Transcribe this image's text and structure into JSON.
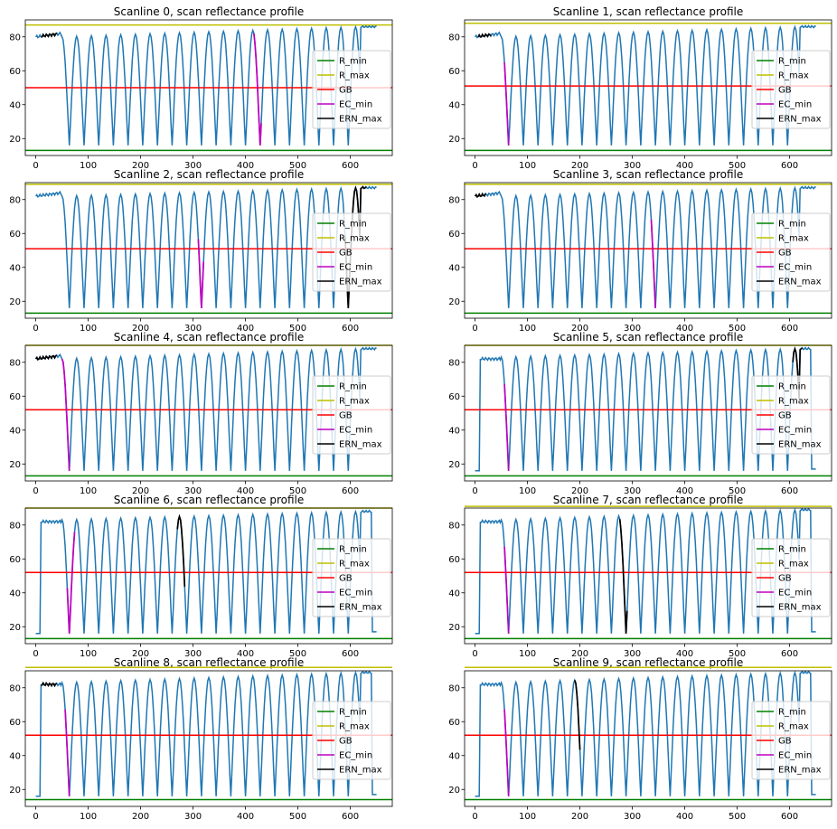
{
  "figure": {
    "layout": "5x2 grid of line charts"
  },
  "chart_data": [
    {
      "type": "line",
      "title": "Scanline 0, scan reflectance profile",
      "xlim": [
        -20,
        680
      ],
      "ylim": [
        10,
        90
      ],
      "xticks": [
        0,
        100,
        200,
        300,
        400,
        500,
        600
      ],
      "yticks": [
        20,
        40,
        60,
        80
      ],
      "series": [
        {
          "name": "R_min",
          "color": "#008000",
          "y": 13
        },
        {
          "name": "R_max",
          "color": "#bfbf00",
          "y": 87
        },
        {
          "name": "GB",
          "color": "#ff0000",
          "y": 50
        },
        {
          "name": "EC_min",
          "color": "#bf00bf",
          "x": [
            415,
            430
          ]
        },
        {
          "name": "ERN_max",
          "color": "#000000",
          "x": [
            10,
            40
          ]
        }
      ],
      "legend": "right",
      "start": 80,
      "start_x": 50,
      "end": 86,
      "end_x": 600,
      "edge": "high"
    },
    {
      "type": "line",
      "title": "Scanline 1, scan reflectance profile",
      "xlim": [
        -20,
        680
      ],
      "ylim": [
        10,
        90
      ],
      "xticks": [
        0,
        100,
        200,
        300,
        400,
        500,
        600
      ],
      "yticks": [
        20,
        40,
        60,
        80
      ],
      "series": [
        {
          "name": "R_min",
          "color": "#008000",
          "y": 13
        },
        {
          "name": "R_max",
          "color": "#bfbf00",
          "y": 88
        },
        {
          "name": "GB",
          "color": "#ff0000",
          "y": 51
        },
        {
          "name": "EC_min",
          "color": "#bf00bf",
          "x": [
            55,
            65
          ]
        },
        {
          "name": "ERN_max",
          "color": "#000000",
          "x": [
            5,
            30
          ]
        }
      ],
      "legend": "right",
      "start": 80,
      "start_x": 50,
      "end": 86,
      "end_x": 600,
      "edge": "high"
    },
    {
      "type": "line",
      "title": "Scanline 2, scan reflectance profile",
      "xlim": [
        -20,
        680
      ],
      "ylim": [
        10,
        90
      ],
      "xticks": [
        0,
        100,
        200,
        300,
        400,
        500,
        600
      ],
      "yticks": [
        20,
        40,
        60,
        80
      ],
      "series": [
        {
          "name": "R_min",
          "color": "#008000",
          "y": 13
        },
        {
          "name": "R_max",
          "color": "#bfbf00",
          "y": 89
        },
        {
          "name": "GB",
          "color": "#ff0000",
          "y": 51
        },
        {
          "name": "EC_min",
          "color": "#bf00bf",
          "x": [
            310,
            320
          ]
        },
        {
          "name": "ERN_max",
          "color": "#000000",
          "x": [
            590,
            630
          ]
        }
      ],
      "legend": "right",
      "start": 82,
      "start_x": 50,
      "end": 87,
      "end_x": 600,
      "edge": "high"
    },
    {
      "type": "line",
      "title": "Scanline 3, scan reflectance profile",
      "xlim": [
        -20,
        680
      ],
      "ylim": [
        10,
        90
      ],
      "xticks": [
        0,
        100,
        200,
        300,
        400,
        500,
        600
      ],
      "yticks": [
        20,
        40,
        60,
        80
      ],
      "series": [
        {
          "name": "R_min",
          "color": "#008000",
          "y": 13
        },
        {
          "name": "R_max",
          "color": "#bfbf00",
          "y": 89
        },
        {
          "name": "GB",
          "color": "#ff0000",
          "y": 51
        },
        {
          "name": "EC_min",
          "color": "#bf00bf",
          "x": [
            335,
            345
          ]
        },
        {
          "name": "ERN_max",
          "color": "#000000",
          "x": [
            0,
            20
          ]
        }
      ],
      "legend": "right",
      "start": 82,
      "start_x": 50,
      "end": 87,
      "end_x": 600,
      "edge": "high"
    },
    {
      "type": "line",
      "title": "Scanline 4, scan reflectance profile",
      "xlim": [
        -20,
        680
      ],
      "ylim": [
        10,
        90
      ],
      "xticks": [
        0,
        100,
        200,
        300,
        400,
        500,
        600
      ],
      "yticks": [
        20,
        40,
        60,
        80
      ],
      "series": [
        {
          "name": "R_min",
          "color": "#008000",
          "y": 13
        },
        {
          "name": "R_max",
          "color": "#bfbf00",
          "y": 90
        },
        {
          "name": "GB",
          "color": "#ff0000",
          "y": 52
        },
        {
          "name": "EC_min",
          "color": "#bf00bf",
          "x": [
            50,
            65
          ]
        },
        {
          "name": "ERN_max",
          "color": "#000000",
          "x": [
            0,
            40
          ]
        }
      ],
      "legend": "right",
      "start": 82,
      "start_x": 50,
      "end": 88,
      "end_x": 610,
      "edge": "high"
    },
    {
      "type": "line",
      "title": "Scanline 5, scan reflectance profile",
      "xlim": [
        -20,
        680
      ],
      "ylim": [
        10,
        90
      ],
      "xticks": [
        0,
        100,
        200,
        300,
        400,
        500,
        600
      ],
      "yticks": [
        20,
        40,
        60,
        80
      ],
      "series": [
        {
          "name": "R_min",
          "color": "#008000",
          "y": 13
        },
        {
          "name": "R_max",
          "color": "#bfbf00",
          "y": 90
        },
        {
          "name": "GB",
          "color": "#ff0000",
          "y": 52
        },
        {
          "name": "EC_min",
          "color": "#bf00bf",
          "x": [
            55,
            65
          ]
        },
        {
          "name": "ERN_max",
          "color": "#000000",
          "x": [
            605,
            625
          ]
        }
      ],
      "legend": "right",
      "start": 83,
      "start_x": 50,
      "end": 88,
      "end_x": 610,
      "edge": "low"
    },
    {
      "type": "line",
      "title": "Scanline 6, scan reflectance profile",
      "xlim": [
        -20,
        680
      ],
      "ylim": [
        10,
        90
      ],
      "xticks": [
        0,
        100,
        200,
        300,
        400,
        500,
        600
      ],
      "yticks": [
        20,
        40,
        60,
        80
      ],
      "series": [
        {
          "name": "R_min",
          "color": "#008000",
          "y": 13
        },
        {
          "name": "R_max",
          "color": "#bfbf00",
          "y": 90
        },
        {
          "name": "GB",
          "color": "#ff0000",
          "y": 52
        },
        {
          "name": "EC_min",
          "color": "#bf00bf",
          "x": [
            60,
            75
          ]
        },
        {
          "name": "ERN_max",
          "color": "#000000",
          "x": [
            270,
            285
          ]
        }
      ],
      "legend": "right",
      "start": 83,
      "start_x": 50,
      "end": 88,
      "end_x": 610,
      "edge": "low"
    },
    {
      "type": "line",
      "title": "Scanline 7, scan reflectance profile",
      "xlim": [
        -20,
        680
      ],
      "ylim": [
        10,
        90
      ],
      "xticks": [
        0,
        100,
        200,
        300,
        400,
        500,
        600
      ],
      "yticks": [
        20,
        40,
        60,
        80
      ],
      "series": [
        {
          "name": "R_min",
          "color": "#008000",
          "y": 13
        },
        {
          "name": "R_max",
          "color": "#bfbf00",
          "y": 91
        },
        {
          "name": "GB",
          "color": "#ff0000",
          "y": 52
        },
        {
          "name": "EC_min",
          "color": "#bf00bf",
          "x": [
            55,
            65
          ]
        },
        {
          "name": "ERN_max",
          "color": "#000000",
          "x": [
            275,
            290
          ]
        }
      ],
      "legend": "right",
      "start": 83,
      "start_x": 50,
      "end": 89,
      "end_x": 610,
      "edge": "low"
    },
    {
      "type": "line",
      "title": "Scanline 8, scan reflectance profile",
      "xlim": [
        -20,
        680
      ],
      "ylim": [
        10,
        90
      ],
      "xticks": [
        0,
        100,
        200,
        300,
        400,
        500,
        600
      ],
      "yticks": [
        20,
        40,
        60,
        80
      ],
      "series": [
        {
          "name": "R_min",
          "color": "#008000",
          "y": 14
        },
        {
          "name": "R_max",
          "color": "#bfbf00",
          "y": 92
        },
        {
          "name": "GB",
          "color": "#ff0000",
          "y": 52
        },
        {
          "name": "EC_min",
          "color": "#bf00bf",
          "x": [
            55,
            65
          ]
        },
        {
          "name": "ERN_max",
          "color": "#000000",
          "x": [
            10,
            40
          ]
        }
      ],
      "legend": "right",
      "start": 83,
      "start_x": 50,
      "end": 89,
      "end_x": 610,
      "edge": "low"
    },
    {
      "type": "line",
      "title": "Scanline 9, scan reflectance profile",
      "xlim": [
        -20,
        680
      ],
      "ylim": [
        10,
        90
      ],
      "xticks": [
        0,
        100,
        200,
        300,
        400,
        500,
        600
      ],
      "yticks": [
        20,
        40,
        60,
        80
      ],
      "series": [
        {
          "name": "R_min",
          "color": "#008000",
          "y": 14
        },
        {
          "name": "R_max",
          "color": "#bfbf00",
          "y": 92
        },
        {
          "name": "GB",
          "color": "#ff0000",
          "y": 52
        },
        {
          "name": "EC_min",
          "color": "#bf00bf",
          "x": [
            55,
            65
          ]
        },
        {
          "name": "ERN_max",
          "color": "#000000",
          "x": [
            190,
            200
          ]
        }
      ],
      "legend": "right",
      "start": 83,
      "start_x": 50,
      "end": 89,
      "end_x": 610,
      "edge": "low"
    }
  ],
  "colors": {
    "profile": "#1f77b4",
    "frame": "#000000",
    "legend_border": "#cccccc"
  }
}
